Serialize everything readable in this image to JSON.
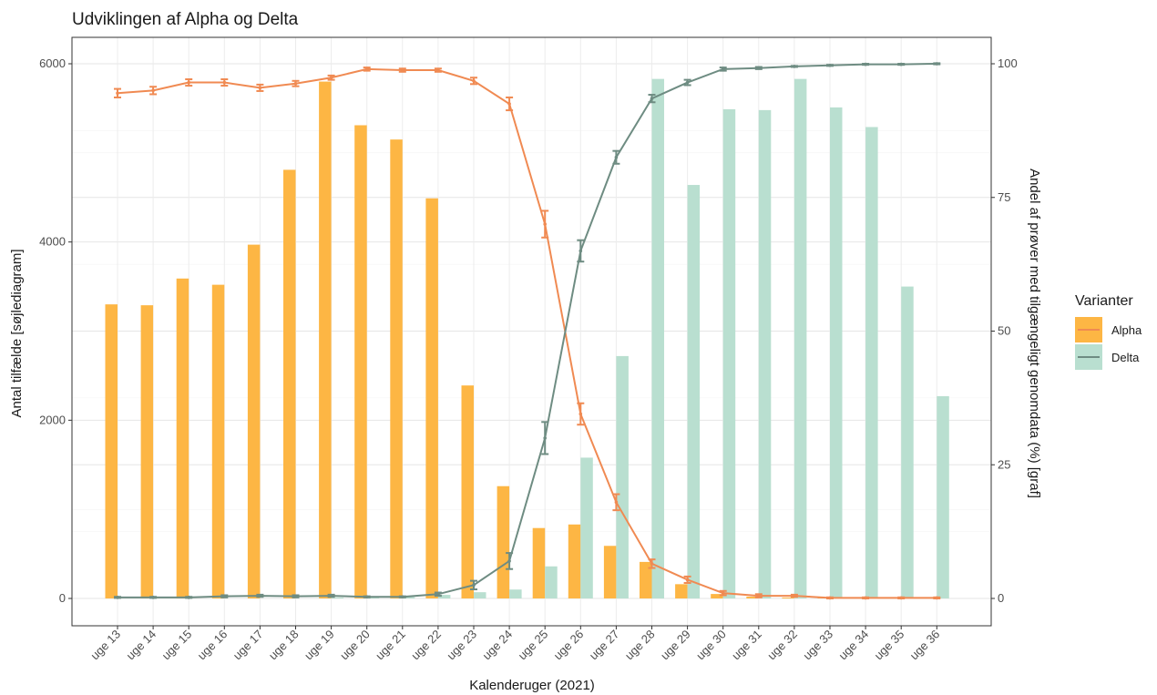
{
  "chart_data": {
    "type": "bar+line",
    "title": "Udviklingen af Alpha og Delta",
    "xlabel": "Kalenderuger (2021)",
    "ylabel_left": "Antal tilfælde [søjlediagram]",
    "ylabel_right": "Andel af prøver med tilgængeligt genomdata (%) [graf]",
    "categories": [
      "uge 13",
      "uge 14",
      "uge 15",
      "uge 16",
      "uge 17",
      "uge 18",
      "uge 19",
      "uge 20",
      "uge 21",
      "uge 22",
      "uge 23",
      "uge 24",
      "uge 25",
      "uge 26",
      "uge 27",
      "uge 28",
      "uge 29",
      "uge 30",
      "uge 31",
      "uge 32",
      "uge 33",
      "uge 34",
      "uge 35",
      "uge 36"
    ],
    "ylim_left": [
      0,
      6000
    ],
    "yticks_left": [
      "0",
      "2000",
      "4000",
      "6000"
    ],
    "ylim_right": [
      0,
      100
    ],
    "yticks_right": [
      "0",
      "25",
      "50",
      "75",
      "100"
    ],
    "legend": {
      "title": "Varianter",
      "position": "right"
    },
    "grid": true,
    "series": [
      {
        "name": "Alpha",
        "bar_color": "#FDB644",
        "line_color": "#F08A52",
        "bar_values": [
          3300,
          3290,
          3590,
          3520,
          3970,
          4810,
          5800,
          5310,
          5150,
          4490,
          2390,
          1260,
          790,
          830,
          590,
          410,
          160,
          50,
          20,
          10,
          5,
          5,
          5,
          5
        ],
        "line_values": [
          94.5,
          95.0,
          96.5,
          96.5,
          95.5,
          96.3,
          97.4,
          99.0,
          98.8,
          98.8,
          96.8,
          92.5,
          70.0,
          34.5,
          18.0,
          6.5,
          3.5,
          1.0,
          0.5,
          0.5,
          0.1,
          0.1,
          0.1,
          0.1
        ],
        "line_errors": [
          0.8,
          0.7,
          0.6,
          0.6,
          0.6,
          0.5,
          0.4,
          0.3,
          0.3,
          0.3,
          0.6,
          1.2,
          2.5,
          2.0,
          1.5,
          0.8,
          0.6,
          0.4,
          0.3,
          0.2,
          0.1,
          0.1,
          0.1,
          0.1
        ]
      },
      {
        "name": "Delta",
        "bar_color": "#B9DFD0",
        "line_color": "#6E8C82",
        "bar_values": [
          0,
          0,
          0,
          0,
          0,
          0,
          10,
          10,
          15,
          40,
          70,
          100,
          360,
          1580,
          2720,
          5830,
          4640,
          5490,
          5480,
          5830,
          5510,
          5290,
          3500,
          2270
        ],
        "line_values": [
          0.2,
          0.2,
          0.2,
          0.4,
          0.5,
          0.4,
          0.5,
          0.3,
          0.3,
          0.8,
          2.5,
          7.0,
          30.0,
          65.0,
          82.5,
          93.5,
          96.5,
          99.0,
          99.2,
          99.5,
          99.7,
          99.9,
          99.9,
          100.0
        ],
        "line_errors": [
          0.1,
          0.1,
          0.1,
          0.2,
          0.2,
          0.2,
          0.2,
          0.1,
          0.1,
          0.3,
          0.8,
          1.5,
          3.0,
          2.0,
          1.2,
          0.7,
          0.5,
          0.3,
          0.2,
          0.1,
          0.1,
          0.1,
          0.1,
          0.1
        ]
      }
    ]
  }
}
